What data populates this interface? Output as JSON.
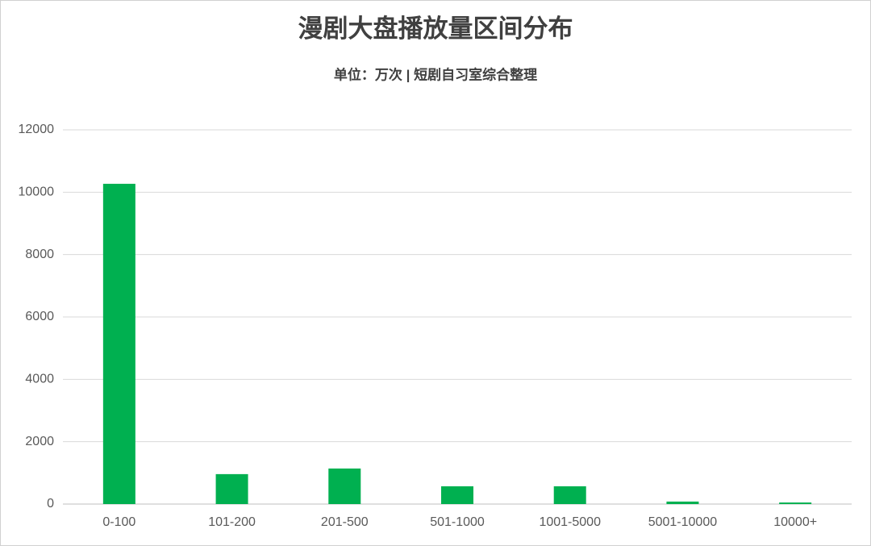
{
  "chart_data": {
    "type": "bar",
    "title": "漫剧大盘播放量区间分布",
    "subtitle": "单位：万次 | 短剧自习室综合整理",
    "categories": [
      "0-100",
      "101-200",
      "201-500",
      "501-1000",
      "1001-5000",
      "5001-10000",
      "10000+"
    ],
    "values": [
      10270,
      960,
      1140,
      570,
      570,
      80,
      50
    ],
    "color": "#00b050",
    "ylim": [
      0,
      12000
    ],
    "yticks": [
      0,
      2000,
      4000,
      6000,
      8000,
      10000,
      12000
    ],
    "grid": true
  }
}
